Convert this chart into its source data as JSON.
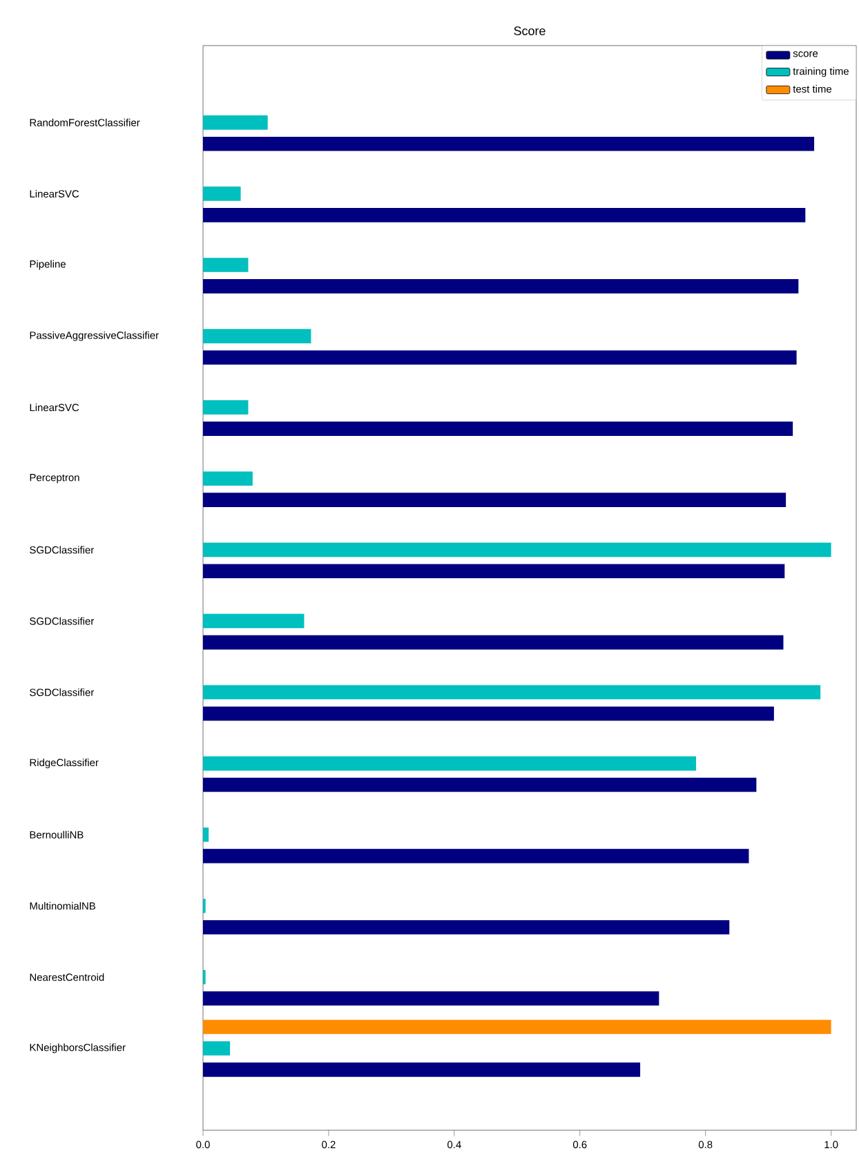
{
  "chart_data": {
    "type": "bar",
    "orientation": "horizontal",
    "title": "Score",
    "categories": [
      "RandomForestClassifier",
      "LinearSVC",
      "Pipeline",
      "PassiveAggressiveClassifier",
      "LinearSVC",
      "Perceptron",
      "SGDClassifier",
      "SGDClassifier",
      "SGDClassifier",
      "RidgeClassifier",
      "BernoulliNB",
      "MultinomialNB",
      "NearestCentroid",
      "KNeighborsClassifier"
    ],
    "series": [
      {
        "name": "score",
        "color": "#000080",
        "values": [
          0.973,
          0.959,
          0.948,
          0.945,
          0.939,
          0.928,
          0.926,
          0.924,
          0.909,
          0.881,
          0.869,
          0.838,
          0.726,
          0.696
        ]
      },
      {
        "name": "training time",
        "color": "#00bfbf",
        "values": [
          0.103,
          0.06,
          0.072,
          0.172,
          0.072,
          0.079,
          1.0,
          0.161,
          0.983,
          0.785,
          0.009,
          0.004,
          0.004,
          0.043
        ]
      },
      {
        "name": "test time",
        "color": "#ff8c00",
        "values": [
          0,
          0,
          0,
          0,
          0,
          0,
          0,
          0,
          0,
          0,
          0,
          0,
          0,
          1.0
        ]
      }
    ],
    "xlim": [
      0,
      1.04
    ],
    "xticks": [
      {
        "value": 0,
        "label": "0.0"
      },
      {
        "value": 0.2,
        "label": "0.2"
      },
      {
        "value": 0.4,
        "label": "0.4"
      },
      {
        "value": 0.6,
        "label": "0.6"
      },
      {
        "value": 0.8,
        "label": "0.8"
      },
      {
        "value": 1.0,
        "label": "1.0"
      }
    ],
    "legend": "top right"
  }
}
